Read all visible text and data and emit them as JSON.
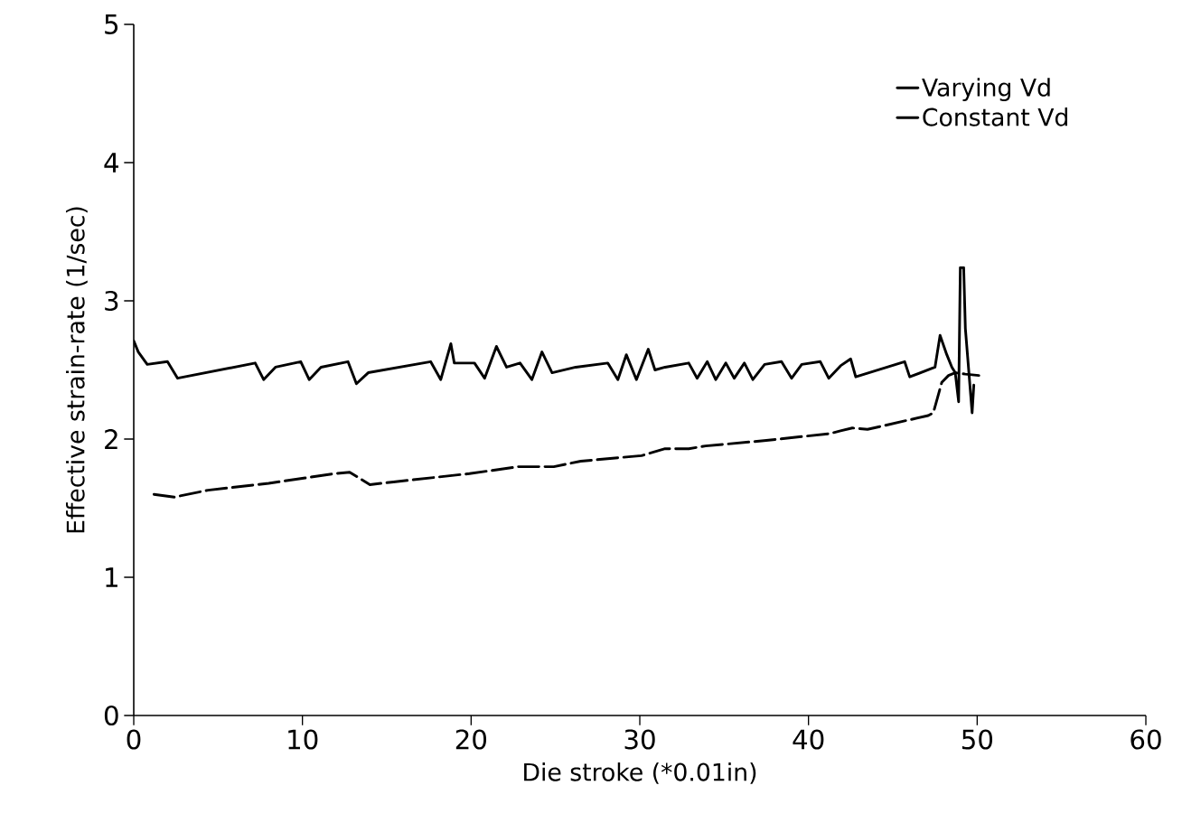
{
  "chart_data": {
    "type": "line",
    "xlabel": "Die stroke  (*0.01in)",
    "ylabel": "Effective strain-rate  (1/sec)",
    "xlim": [
      0,
      60
    ],
    "ylim": [
      0,
      5
    ],
    "xticks": [
      0,
      10,
      20,
      30,
      40,
      50,
      60
    ],
    "yticks": [
      0,
      1,
      2,
      3,
      4,
      5
    ],
    "grid": false,
    "legend": "top right",
    "marker": "none",
    "series": [
      {
        "name": "Varying Vd",
        "color": "#000000",
        "line_style": "solid",
        "x": [
          0,
          0.27,
          0.8,
          2.0,
          2.6,
          7.2,
          7.7,
          8.4,
          9.9,
          10.4,
          11.1,
          12.7,
          13.2,
          13.9,
          17.6,
          18.2,
          18.8,
          19.0,
          20.2,
          20.8,
          21.5,
          22.1,
          22.9,
          23.6,
          24.2,
          24.8,
          26.2,
          28.1,
          28.7,
          29.2,
          29.8,
          30.5,
          30.9,
          31.5,
          32.9,
          33.4,
          34.0,
          34.5,
          35.1,
          35.6,
          36.2,
          36.7,
          37.4,
          38.4,
          39.0,
          39.6,
          40.7,
          41.2,
          41.9,
          42.5,
          42.8,
          45.7,
          46.0,
          47.5,
          47.8,
          48.2,
          48.5,
          48.7,
          48.9,
          49.0,
          49.2,
          49.3,
          49.7,
          49.8
        ],
        "values": [
          2.71,
          2.63,
          2.54,
          2.56,
          2.44,
          2.55,
          2.43,
          2.52,
          2.56,
          2.43,
          2.52,
          2.56,
          2.4,
          2.48,
          2.56,
          2.43,
          2.69,
          2.55,
          2.55,
          2.44,
          2.67,
          2.52,
          2.55,
          2.43,
          2.63,
          2.48,
          2.52,
          2.55,
          2.43,
          2.61,
          2.43,
          2.65,
          2.5,
          2.52,
          2.55,
          2.44,
          2.56,
          2.43,
          2.55,
          2.44,
          2.55,
          2.43,
          2.54,
          2.56,
          2.44,
          2.54,
          2.56,
          2.44,
          2.53,
          2.58,
          2.45,
          2.56,
          2.45,
          2.52,
          2.75,
          2.61,
          2.52,
          2.48,
          2.27,
          3.24,
          3.24,
          2.8,
          2.19,
          2.39
        ]
      },
      {
        "name": "Constant Vd",
        "color": "#000000",
        "line_style": "dashed",
        "x": [
          1.2,
          2.4,
          4.4,
          8.0,
          11.9,
          12.8,
          14.0,
          15.4,
          19.9,
          22.8,
          24.9,
          26.5,
          30.1,
          31.5,
          32.9,
          33.9,
          37.5,
          41.3,
          41.9,
          42.6,
          43.5,
          47.1,
          47.4,
          47.9,
          48.3,
          48.7,
          49.3,
          50.1
        ],
        "values": [
          1.6,
          1.58,
          1.63,
          1.68,
          1.75,
          1.76,
          1.67,
          1.69,
          1.75,
          1.8,
          1.8,
          1.84,
          1.88,
          1.93,
          1.93,
          1.95,
          1.99,
          2.04,
          2.06,
          2.08,
          2.07,
          2.17,
          2.19,
          2.41,
          2.46,
          2.48,
          2.47,
          2.46
        ]
      }
    ]
  }
}
